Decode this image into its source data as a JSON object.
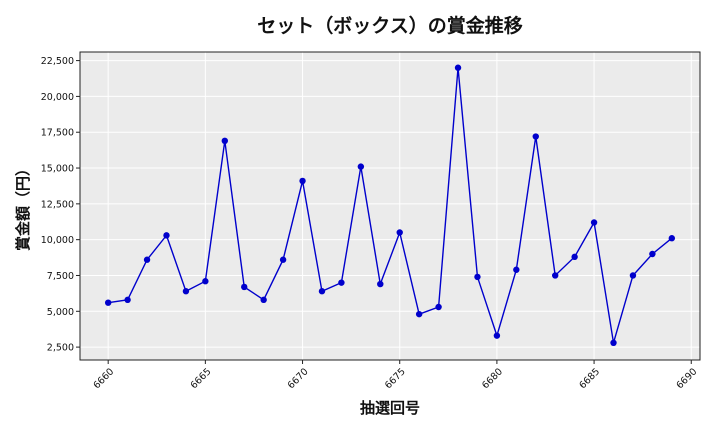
{
  "chart_data": {
    "type": "line",
    "title": "セット（ボックス）の賞金推移",
    "xlabel": "抽選回号",
    "ylabel": "賞金額（円）",
    "x": [
      6660,
      6661,
      6662,
      6663,
      6664,
      6665,
      6666,
      6667,
      6668,
      6669,
      6670,
      6671,
      6672,
      6673,
      6674,
      6675,
      6676,
      6677,
      6678,
      6679,
      6680,
      6681,
      6682,
      6683,
      6684,
      6685,
      6686,
      6687,
      6688,
      6689
    ],
    "series": [
      {
        "values": [
          5600,
          5800,
          8600,
          10300,
          6400,
          7100,
          16900,
          6700,
          5800,
          8600,
          14100,
          6400,
          7000,
          15100,
          6900,
          10500,
          4800,
          5300,
          22000,
          7400,
          3300,
          7900,
          17200,
          7500,
          8800,
          11200,
          2800,
          7500,
          9000,
          10100
        ],
        "color": "#0000cc"
      }
    ],
    "xlim": [
      6658.55,
      6690.45
    ],
    "ylim": [
      1600,
      23100
    ],
    "xticks": [
      6660,
      6665,
      6670,
      6675,
      6680,
      6685,
      6690
    ],
    "xtick_labels": [
      "6660",
      "6665",
      "6670",
      "6675",
      "6680",
      "6685",
      "6690"
    ],
    "yticks": [
      2500,
      5000,
      7500,
      10000,
      12500,
      15000,
      17500,
      20000,
      22500
    ],
    "ytick_labels": [
      "2,500",
      "5,000",
      "7,500",
      "10,000",
      "12,500",
      "15,000",
      "17,500",
      "20,000",
      "22,500"
    ],
    "grid": true,
    "plot_background": "#ebebeb"
  }
}
